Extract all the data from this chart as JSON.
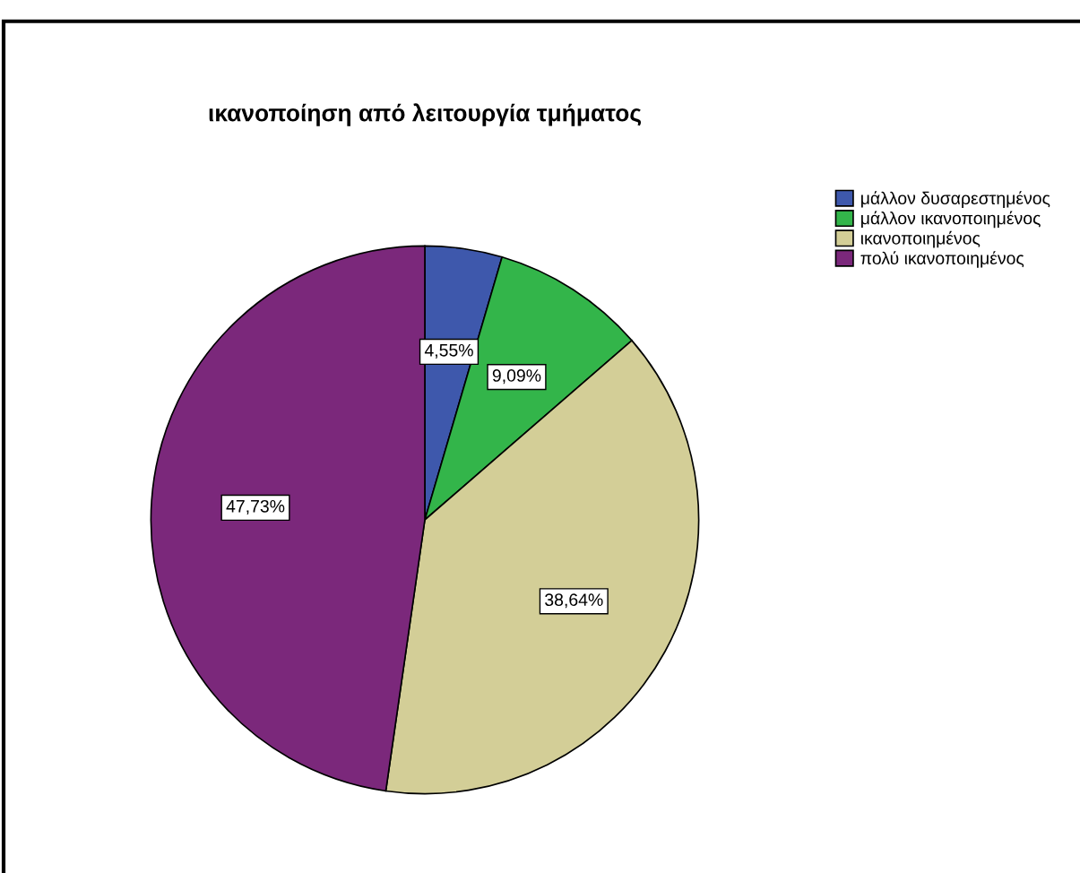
{
  "chart_data": {
    "type": "pie",
    "title": "ικανοποίηση από λειτουργία τμήματος",
    "categories": [
      "μάλλον δυσαρεστημένος",
      "μάλλον ικανοποιημένος",
      "ικανοποιημένος",
      "πολύ ικανοποιημένος"
    ],
    "values": [
      4.55,
      9.09,
      38.64,
      47.73
    ],
    "colors": [
      "#3e58ac",
      "#33b54a",
      "#d3ce97",
      "#7b287b"
    ],
    "value_labels": [
      "4,55%",
      "9,09%",
      "38,64%",
      "47,73%"
    ],
    "legend": "top right"
  }
}
